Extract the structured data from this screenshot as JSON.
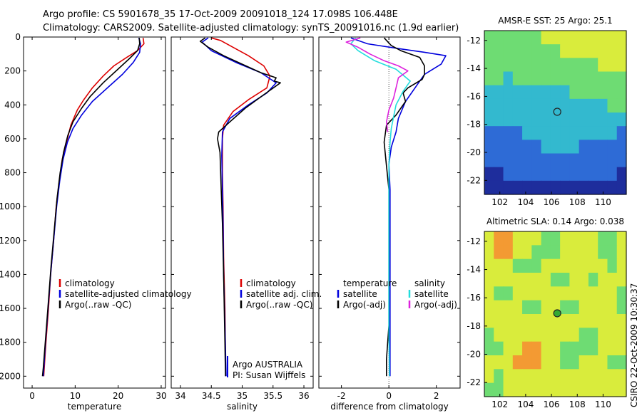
{
  "title_line1": "Argo profile: CS 5901678_35 17-Oct-2009 20091018_124 17.098S 106.448E",
  "title_line2": "Climatology: CARS2009. Satellite-adjusted climatology: synTS_20091016.nc (1.9d earlier)",
  "colors": {
    "red": "#dd0000",
    "blue": "#0000dd",
    "black": "#000000",
    "cyan": "#22dddd",
    "magenta": "#dd22dd"
  },
  "chart_data": [
    {
      "id": "temperature",
      "type": "line",
      "xlabel": "temperature",
      "xlim": [
        -2,
        31
      ],
      "xticks": [
        0,
        10,
        20,
        30
      ],
      "ylim": [
        2070,
        0
      ],
      "yticks": [
        0,
        200,
        400,
        600,
        800,
        1000,
        1200,
        1400,
        1600,
        1800,
        2000
      ],
      "legend": [
        "climatology",
        "satellite-adjusted climatology",
        "Argo(..raw -QC)"
      ],
      "series": [
        {
          "name": "climatology",
          "color": "red",
          "points": [
            [
              25.8,
              5
            ],
            [
              26.0,
              40
            ],
            [
              24.5,
              80
            ],
            [
              22,
              120
            ],
            [
              19,
              170
            ],
            [
              16.5,
              230
            ],
            [
              14,
              300
            ],
            [
              12,
              370
            ],
            [
              10.5,
              430
            ],
            [
              9,
              520
            ],
            [
              8,
              620
            ],
            [
              7,
              720
            ],
            [
              6.3,
              850
            ],
            [
              5.6,
              1000
            ],
            [
              5.0,
              1200
            ],
            [
              4.3,
              1400
            ],
            [
              3.8,
              1600
            ],
            [
              3.2,
              1800
            ],
            [
              2.7,
              2000
            ]
          ]
        },
        {
          "name": "satellite-adjusted climatology",
          "color": "blue",
          "points": [
            [
              24.8,
              5
            ],
            [
              25.2,
              40
            ],
            [
              25,
              90
            ],
            [
              23.5,
              150
            ],
            [
              21,
              220
            ],
            [
              17.5,
              300
            ],
            [
              14,
              380
            ],
            [
              11.5,
              460
            ],
            [
              9.5,
              540
            ],
            [
              8.2,
              620
            ],
            [
              7.2,
              720
            ],
            [
              6.4,
              850
            ],
            [
              5.7,
              1000
            ],
            [
              5.0,
              1200
            ],
            [
              4.3,
              1400
            ],
            [
              3.7,
              1600
            ],
            [
              3.1,
              1800
            ],
            [
              2.6,
              2000
            ]
          ]
        },
        {
          "name": "Argo(..raw -QC)",
          "color": "black",
          "points": [
            [
              24.9,
              5
            ],
            [
              25.0,
              40
            ],
            [
              24.5,
              80
            ],
            [
              22.5,
              130
            ],
            [
              19.5,
              200
            ],
            [
              16.5,
              270
            ],
            [
              13.5,
              350
            ],
            [
              11.5,
              420
            ],
            [
              9.5,
              500
            ],
            [
              8.3,
              580
            ],
            [
              7.3,
              680
            ],
            [
              6.5,
              800
            ],
            [
              5.8,
              950
            ],
            [
              5.1,
              1150
            ],
            [
              4.4,
              1350
            ],
            [
              3.8,
              1550
            ],
            [
              3.2,
              1750
            ],
            [
              2.6,
              1950
            ],
            [
              2.4,
              2000
            ]
          ]
        }
      ]
    },
    {
      "id": "salinity",
      "type": "line",
      "xlabel": "salinity",
      "xlim": [
        33.85,
        36.15
      ],
      "xticks": [
        34,
        34.5,
        35,
        35.5,
        36
      ],
      "ylim": [
        2070,
        0
      ],
      "legend": [
        "climatology",
        "satellite adj. clim.",
        "Argo(..raw -QC)"
      ],
      "series": [
        {
          "name": "climatology",
          "color": "red",
          "points": [
            [
              34.5,
              5
            ],
            [
              34.65,
              20
            ],
            [
              34.85,
              60
            ],
            [
              35.1,
              110
            ],
            [
              35.35,
              170
            ],
            [
              35.45,
              230
            ],
            [
              35.4,
              300
            ],
            [
              35.1,
              370
            ],
            [
              34.85,
              440
            ],
            [
              34.7,
              520
            ],
            [
              34.68,
              600
            ],
            [
              34.68,
              800
            ],
            [
              34.69,
              1000
            ],
            [
              34.7,
              1300
            ],
            [
              34.72,
              1600
            ],
            [
              34.73,
              1880
            ]
          ]
        },
        {
          "name": "satellite adj. clim.",
          "color": "blue",
          "points": [
            [
              34.45,
              5
            ],
            [
              34.35,
              30
            ],
            [
              34.5,
              80
            ],
            [
              34.9,
              150
            ],
            [
              35.3,
              210
            ],
            [
              35.55,
              270
            ],
            [
              35.4,
              330
            ],
            [
              35.1,
              400
            ],
            [
              34.8,
              480
            ],
            [
              34.68,
              560
            ],
            [
              34.67,
              700
            ],
            [
              34.68,
              900
            ],
            [
              34.69,
              1100
            ],
            [
              34.7,
              1400
            ],
            [
              34.72,
              1700
            ],
            [
              34.74,
              2000
            ]
          ]
        },
        {
          "name": "Argo(..raw -QC)",
          "color": "black",
          "points": [
            [
              34.4,
              5
            ],
            [
              34.32,
              25
            ],
            [
              34.45,
              60
            ],
            [
              34.7,
              110
            ],
            [
              35.0,
              160
            ],
            [
              35.3,
              210
            ],
            [
              35.55,
              240
            ],
            [
              35.52,
              260
            ],
            [
              35.62,
              270
            ],
            [
              35.35,
              340
            ],
            [
              35.05,
              420
            ],
            [
              34.8,
              500
            ],
            [
              34.62,
              560
            ],
            [
              34.6,
              600
            ],
            [
              34.64,
              680
            ],
            [
              34.66,
              900
            ],
            [
              34.68,
              1100
            ],
            [
              34.7,
              1400
            ],
            [
              34.72,
              1800
            ],
            [
              34.73,
              2000
            ]
          ]
        }
      ],
      "annotation_line1": "Argo AUSTRALIA",
      "annotation_line2": "PI: Susan Wijffels"
    },
    {
      "id": "difference",
      "type": "line",
      "xlabel": "difference from climatology",
      "xlim": [
        -2.95,
        3.0
      ],
      "xticks": [
        -2,
        0,
        2
      ],
      "ylim": [
        2070,
        0
      ],
      "legend_left": [
        "temperature",
        "satellite",
        "Argo(-adj)"
      ],
      "legend_right": [
        "salinity",
        "satellite",
        "Argo(-adj)"
      ],
      "series": [
        {
          "name": "temperature satellite",
          "color": "blue",
          "points": [
            [
              -1.6,
              5
            ],
            [
              -0.9,
              40
            ],
            [
              0.5,
              70
            ],
            [
              1.5,
              90
            ],
            [
              2.4,
              110
            ],
            [
              2.2,
              160
            ],
            [
              1.5,
              220
            ],
            [
              1.2,
              280
            ],
            [
              0.7,
              380
            ],
            [
              0.4,
              480
            ],
            [
              0.3,
              560
            ],
            [
              0.1,
              650
            ],
            [
              0,
              750
            ],
            [
              0.05,
              900
            ],
            [
              0.05,
              1100
            ],
            [
              0.05,
              1300
            ],
            [
              0.05,
              1600
            ],
            [
              0.05,
              1900
            ],
            [
              0.05,
              2000
            ]
          ]
        },
        {
          "name": "temperature Argo(-adj)",
          "color": "black",
          "points": [
            [
              -0.2,
              5
            ],
            [
              0.1,
              50
            ],
            [
              0.5,
              80
            ],
            [
              1.3,
              120
            ],
            [
              1.5,
              170
            ],
            [
              1.5,
              220
            ],
            [
              1.4,
              250
            ],
            [
              0.8,
              300
            ],
            [
              0.6,
              330
            ],
            [
              0.7,
              380
            ],
            [
              0.3,
              460
            ],
            [
              -0.1,
              520
            ],
            [
              -0.2,
              620
            ],
            [
              -0.1,
              760
            ],
            [
              0,
              900
            ],
            [
              0,
              1100
            ],
            [
              0,
              1300
            ],
            [
              0,
              1500
            ],
            [
              0,
              1700
            ],
            [
              -0.1,
              1900
            ],
            [
              -0.1,
              2000
            ]
          ]
        },
        {
          "name": "salinity satellite",
          "color": "cyan",
          "points": [
            [
              -1.4,
              5
            ],
            [
              -1.6,
              40
            ],
            [
              -1.3,
              80
            ],
            [
              -0.6,
              140
            ],
            [
              0.3,
              190
            ],
            [
              0.9,
              260
            ],
            [
              0.6,
              320
            ],
            [
              0.3,
              400
            ],
            [
              0.2,
              470
            ],
            [
              0.1,
              540
            ],
            [
              0.05,
              620
            ],
            [
              0,
              760
            ],
            [
              0,
              900
            ],
            [
              0,
              1100
            ],
            [
              0,
              1400
            ],
            [
              0,
              1700
            ],
            [
              0.02,
              2000
            ]
          ]
        },
        {
          "name": "salinity Argo(-adj)",
          "color": "magenta",
          "points": [
            [
              -1.2,
              5
            ],
            [
              -1.8,
              30
            ],
            [
              -1.3,
              60
            ],
            [
              -0.8,
              100
            ],
            [
              -0.2,
              140
            ],
            [
              0.4,
              170
            ],
            [
              0.8,
              200
            ],
            [
              0.4,
              240
            ],
            [
              0.3,
              300
            ],
            [
              0.2,
              360
            ],
            [
              0,
              430
            ],
            [
              -0.1,
              500
            ],
            [
              -0.05,
              560
            ]
          ]
        }
      ]
    },
    {
      "id": "sst_map",
      "type": "heatmap",
      "title": "AMSR-E SST: 25 Argo: 25.1",
      "xlim": [
        100.8,
        111.8
      ],
      "xticks": [
        102,
        104,
        106,
        108,
        110
      ],
      "ylim": [
        -23,
        -11.3
      ],
      "yticks": [
        -12,
        -14,
        -16,
        -18,
        -20,
        -22
      ],
      "argo_lon": 106.448,
      "argo_lat": -17.098,
      "pattern": [
        "GGGGGGYYYYYYYYY",
        "GGGGGGGGYYYYYYY",
        "GGGGGGGGGGGGYYY",
        "GGCGGGGGGGGGGGG",
        "CCCCCCCCCGGGGGG",
        "CCCCCCCCCCCCCGG",
        "CCCCCCCCCCCCCCC",
        "LLLLCCCCCCCCCCL",
        "LLLLLLCCCCLLLLL",
        "LLLLLLLLLLLLLLL",
        "DDLLLLLLLLLLLLD",
        "DDDDDDDDDDDDDDD"
      ]
    },
    {
      "id": "sla_map",
      "type": "heatmap",
      "title": "Altimetric SLA: 0.14 Argo: 0.038",
      "xlim": [
        100.8,
        111.8
      ],
      "xticks": [
        102,
        104,
        106,
        108,
        110
      ],
      "ylim": [
        -23,
        -11.3
      ],
      "yticks": [
        -12,
        -14,
        -16,
        -18,
        -20,
        -22
      ],
      "argo_lon": 106.448,
      "argo_lat": -17.098,
      "pattern": [
        "YOOYYYGGYYYYGGY",
        "YOOYYGGGYYYYGGY",
        "YYYGGGYYYYYYYGY",
        "YYYYYYYGGYYGYYY",
        "YGGYYYYYYYYYYYG",
        "YYYYGGYYGGYYYYG",
        "YYYYYYYYYYYYYYY",
        "GYYYYYYYYYGGYYY",
        "GGYYOOYYGGGGYYY",
        "YYYOOOYYGGYYYGG",
        "YGYYYYYYYYYYYYY",
        "GGYYYYYYYYYYYYY"
      ]
    },
    {
      "id": "footer",
      "type": "table",
      "stamp": "CSIRO 22-Oct-2009 10:30:37"
    }
  ]
}
